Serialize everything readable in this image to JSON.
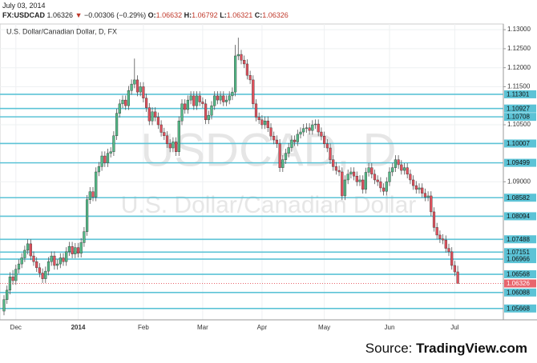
{
  "header": {
    "date": "July 03, 2014",
    "symbol": "FX:USDCAD",
    "last": "1.06326",
    "arrow": "▼",
    "change": "−0.00306 (−0.29%)",
    "o_label": "O:",
    "o": "1.06632",
    "h_label": "H:",
    "h": "1.06792",
    "l_label": "L:",
    "l": "1.06321",
    "c_label": "C:",
    "c": "1.06326"
  },
  "source": {
    "prefix": "Source:",
    "name": "TradingView.com"
  },
  "chart_data": {
    "type": "candlestick",
    "subtitle": "U.S. Dollar/Canadian Dollar, D, FX",
    "watermark": "USDCAD, D",
    "watermark_subtitle": "U.S. Dollar/Canadian Dollar",
    "up_color": "#53b987",
    "down_color": "#e0505c",
    "level_color": "#5cc3d6",
    "last_price_color": "#e8656d",
    "ylim": [
      1.0537,
      1.1315
    ],
    "yticks": [
      {
        "value": 1.09,
        "label": "1.09000"
      },
      {
        "value": 1.105,
        "label": "1.10500"
      },
      {
        "value": 1.115,
        "label": "1.11500"
      },
      {
        "value": 1.12,
        "label": "1.12000"
      },
      {
        "value": 1.125,
        "label": "1.12500"
      },
      {
        "value": 1.13,
        "label": "1.13000"
      }
    ],
    "levels": [
      1.11301,
      1.10927,
      1.10708,
      1.10007,
      1.09499,
      1.08582,
      1.08094,
      1.07488,
      1.07151,
      1.06966,
      1.06568,
      1.06088,
      1.05668
    ],
    "last_price": 1.06326,
    "grid": true,
    "categories": [
      null,
      null,
      null,
      null,
      "Dec",
      null,
      null,
      null,
      null,
      null,
      null,
      null,
      null,
      null,
      null,
      null,
      null,
      null,
      null,
      null,
      null,
      null,
      null,
      null,
      null,
      "2014",
      null,
      null,
      null,
      null,
      null,
      null,
      null,
      null,
      null,
      null,
      null,
      null,
      null,
      null,
      null,
      null,
      null,
      null,
      null,
      null,
      null,
      "Feb",
      null,
      null,
      null,
      null,
      null,
      null,
      null,
      null,
      null,
      null,
      null,
      null,
      null,
      null,
      null,
      null,
      null,
      null,
      null,
      "Mar",
      null,
      null,
      null,
      null,
      null,
      null,
      null,
      null,
      null,
      null,
      null,
      null,
      null,
      null,
      null,
      null,
      null,
      null,
      null,
      "Apr",
      null,
      null,
      null,
      null,
      null,
      null,
      null,
      null,
      null,
      null,
      null,
      null,
      null,
      null,
      null,
      null,
      null,
      null,
      null,
      null,
      "May",
      null,
      null,
      null,
      null,
      null,
      null,
      null,
      null,
      null,
      null,
      null,
      null,
      null,
      null,
      null,
      null,
      null,
      null,
      null,
      null,
      null,
      "Jun",
      null,
      null,
      null,
      null,
      null,
      null,
      null,
      null,
      null,
      null,
      null,
      null,
      null,
      null,
      null,
      null,
      null,
      null,
      null,
      null,
      null,
      "Jul",
      null
    ],
    "ohlc": [
      [
        1.056,
        1.0602,
        1.0549,
        1.059
      ],
      [
        1.059,
        1.0627,
        1.0579,
        1.0615
      ],
      [
        1.0615,
        1.0662,
        1.0604,
        1.065
      ],
      [
        1.065,
        1.0668,
        1.0629,
        1.064
      ],
      [
        1.064,
        1.0682,
        1.0629,
        1.067
      ],
      [
        1.067,
        1.0696,
        1.0659,
        1.0684
      ],
      [
        1.0684,
        1.0712,
        1.0673,
        1.07
      ],
      [
        1.07,
        1.0732,
        1.0689,
        1.072
      ],
      [
        1.072,
        1.0749,
        1.0709,
        1.0737
      ],
      [
        1.0737,
        1.0749,
        1.0694,
        1.0705
      ],
      [
        1.0705,
        1.0717,
        1.0679,
        1.069
      ],
      [
        1.069,
        1.0702,
        1.0663,
        1.0674
      ],
      [
        1.0674,
        1.0686,
        1.0649,
        1.066
      ],
      [
        1.066,
        1.0672,
        1.0634,
        1.0645
      ],
      [
        1.0645,
        1.0677,
        1.0634,
        1.0665
      ],
      [
        1.0665,
        1.0702,
        1.0654,
        1.069
      ],
      [
        1.069,
        1.0717,
        1.0679,
        1.0705
      ],
      [
        1.0705,
        1.0717,
        1.0669,
        1.068
      ],
      [
        1.068,
        1.0696,
        1.0669,
        1.0684
      ],
      [
        1.0684,
        1.0712,
        1.0673,
        1.07
      ],
      [
        1.07,
        1.0712,
        1.0679,
        1.069
      ],
      [
        1.069,
        1.0728,
        1.0679,
        1.0716
      ],
      [
        1.0716,
        1.0742,
        1.0705,
        1.073
      ],
      [
        1.073,
        1.0742,
        1.0699,
        1.071
      ],
      [
        1.071,
        1.0739,
        1.0699,
        1.0727
      ],
      [
        1.0727,
        1.0739,
        1.0701,
        1.0712
      ],
      [
        1.0712,
        1.0752,
        1.0701,
        1.074
      ],
      [
        1.074,
        1.0781,
        1.0729,
        1.0769
      ],
      [
        1.0769,
        1.0865,
        1.0758,
        1.0853
      ],
      [
        1.0853,
        1.0886,
        1.0842,
        1.0874
      ],
      [
        1.0874,
        1.0886,
        1.0849,
        1.086
      ],
      [
        1.086,
        1.0938,
        1.0849,
        1.0926
      ],
      [
        1.0926,
        1.0952,
        1.0915,
        1.094
      ],
      [
        1.094,
        1.098,
        1.0929,
        1.0968
      ],
      [
        1.0968,
        1.098,
        1.0939,
        1.095
      ],
      [
        1.095,
        1.0987,
        1.0939,
        1.0975
      ],
      [
        1.0975,
        1.0991,
        1.0964,
        1.0979
      ],
      [
        1.0979,
        1.1033,
        1.0968,
        1.1021
      ],
      [
        1.1021,
        1.1092,
        1.101,
        1.108
      ],
      [
        1.108,
        1.1117,
        1.1069,
        1.1105
      ],
      [
        1.1105,
        1.1127,
        1.1094,
        1.1115
      ],
      [
        1.1115,
        1.1127,
        1.1089,
        1.11
      ],
      [
        1.11,
        1.1152,
        1.1089,
        1.114
      ],
      [
        1.114,
        1.1169,
        1.1129,
        1.1157
      ],
      [
        1.1157,
        1.1224,
        1.1146,
        1.1168
      ],
      [
        1.1168,
        1.118,
        1.1125,
        1.1136
      ],
      [
        1.1136,
        1.1162,
        1.1125,
        1.115
      ],
      [
        1.115,
        1.1162,
        1.1109,
        1.112
      ],
      [
        1.112,
        1.1132,
        1.1084,
        1.1095
      ],
      [
        1.1095,
        1.1107,
        1.1049,
        1.106
      ],
      [
        1.106,
        1.1096,
        1.1049,
        1.1084
      ],
      [
        1.1084,
        1.1096,
        1.1059,
        1.107
      ],
      [
        1.107,
        1.1082,
        1.1039,
        1.105
      ],
      [
        1.105,
        1.1062,
        1.1019,
        1.103
      ],
      [
        1.103,
        1.1042,
        1.101,
        1.1021
      ],
      [
        1.1021,
        1.1033,
        1.0989,
        1.1
      ],
      [
        1.1,
        1.1012,
        1.0978,
        1.0989
      ],
      [
        1.0989,
        1.1017,
        1.0978,
        1.1005
      ],
      [
        1.1005,
        1.1017,
        1.0968,
        1.0979
      ],
      [
        1.0979,
        1.1072,
        1.0968,
        1.106
      ],
      [
        1.106,
        1.1117,
        1.1049,
        1.1105
      ],
      [
        1.1105,
        1.1117,
        1.1079,
        1.109
      ],
      [
        1.109,
        1.1127,
        1.1079,
        1.1115
      ],
      [
        1.1115,
        1.1138,
        1.1104,
        1.1126
      ],
      [
        1.1126,
        1.1138,
        1.1089,
        1.11
      ],
      [
        1.11,
        1.1138,
        1.1089,
        1.1126
      ],
      [
        1.1126,
        1.1138,
        1.1099,
        1.111
      ],
      [
        1.111,
        1.1122,
        1.1094,
        1.1105
      ],
      [
        1.1105,
        1.1117,
        1.1052,
        1.1063
      ],
      [
        1.1063,
        1.1087,
        1.1052,
        1.1075
      ],
      [
        1.1075,
        1.1112,
        1.1064,
        1.11
      ],
      [
        1.11,
        1.1138,
        1.1089,
        1.1126
      ],
      [
        1.1126,
        1.1138,
        1.1104,
        1.1115
      ],
      [
        1.1115,
        1.1138,
        1.1104,
        1.1126
      ],
      [
        1.1126,
        1.1138,
        1.1099,
        1.111
      ],
      [
        1.111,
        1.1127,
        1.1099,
        1.1115
      ],
      [
        1.1115,
        1.1138,
        1.1104,
        1.1126
      ],
      [
        1.1126,
        1.1148,
        1.1115,
        1.1136
      ],
      [
        1.1136,
        1.126,
        1.1125,
        1.1231
      ],
      [
        1.1231,
        1.1279,
        1.122,
        1.1235
      ],
      [
        1.1235,
        1.1247,
        1.1209,
        1.122
      ],
      [
        1.122,
        1.1232,
        1.1199,
        1.121
      ],
      [
        1.121,
        1.1222,
        1.1169,
        1.118
      ],
      [
        1.118,
        1.1192,
        1.1157,
        1.1168
      ],
      [
        1.1168,
        1.118,
        1.1094,
        1.1105
      ],
      [
        1.1105,
        1.1117,
        1.1059,
        1.107
      ],
      [
        1.107,
        1.1082,
        1.1052,
        1.1063
      ],
      [
        1.1063,
        1.1075,
        1.1039,
        1.105
      ],
      [
        1.105,
        1.1072,
        1.1039,
        1.106
      ],
      [
        1.106,
        1.1072,
        1.1031,
        1.1042
      ],
      [
        1.1042,
        1.1054,
        1.1009,
        1.102
      ],
      [
        1.102,
        1.1032,
        1.0999,
        1.101
      ],
      [
        1.101,
        1.1022,
        1.0989,
        1.1
      ],
      [
        1.1,
        1.1012,
        1.0926,
        1.0937
      ],
      [
        1.0937,
        1.097,
        1.0926,
        1.0958
      ],
      [
        1.0958,
        1.0987,
        1.0947,
        1.0975
      ],
      [
        1.0975,
        1.1002,
        1.0964,
        1.099
      ],
      [
        1.099,
        1.1022,
        1.0979,
        1.101
      ],
      [
        1.101,
        1.1022,
        1.0994,
        1.1005
      ],
      [
        1.1005,
        1.1037,
        1.0994,
        1.1025
      ],
      [
        1.1025,
        1.1043,
        1.1014,
        1.1031
      ],
      [
        1.1031,
        1.1052,
        1.102,
        1.104
      ],
      [
        1.104,
        1.1054,
        1.1029,
        1.1042
      ],
      [
        1.1042,
        1.1054,
        1.1024,
        1.1035
      ],
      [
        1.1035,
        1.1062,
        1.1024,
        1.105
      ],
      [
        1.105,
        1.1064,
        1.1039,
        1.1052
      ],
      [
        1.1052,
        1.1064,
        1.102,
        1.1031
      ],
      [
        1.1031,
        1.1043,
        1.1009,
        1.102
      ],
      [
        1.102,
        1.1032,
        1.0989,
        1.1
      ],
      [
        1.1,
        1.1012,
        1.0978,
        1.0989
      ],
      [
        1.0989,
        1.1001,
        1.0947,
        1.0958
      ],
      [
        1.0958,
        1.097,
        1.0929,
        1.094
      ],
      [
        1.094,
        1.0952,
        1.0919,
        1.093
      ],
      [
        1.093,
        1.0942,
        1.0915,
        1.0926
      ],
      [
        1.0926,
        1.0938,
        1.0852,
        1.0863
      ],
      [
        1.0863,
        1.0917,
        1.0852,
        1.0905
      ],
      [
        1.0905,
        1.0932,
        1.0894,
        1.092
      ],
      [
        1.092,
        1.0938,
        1.0909,
        1.0926
      ],
      [
        1.0926,
        1.0938,
        1.0904,
        1.0915
      ],
      [
        1.0915,
        1.0927,
        1.0889,
        1.09
      ],
      [
        1.09,
        1.0917,
        1.0889,
        1.0905
      ],
      [
        1.0905,
        1.0917,
        1.0869,
        1.088
      ],
      [
        1.088,
        1.0937,
        1.0869,
        1.0925
      ],
      [
        1.0925,
        1.0949,
        1.0914,
        1.0937
      ],
      [
        1.0937,
        1.0949,
        1.0909,
        1.092
      ],
      [
        1.092,
        1.0932,
        1.0894,
        1.0905
      ],
      [
        1.0905,
        1.0917,
        1.0889,
        1.09
      ],
      [
        1.09,
        1.0912,
        1.0873,
        1.0884
      ],
      [
        1.0884,
        1.0896,
        1.0864,
        1.0875
      ],
      [
        1.0875,
        1.0912,
        1.0864,
        1.09
      ],
      [
        1.09,
        1.0938,
        1.0889,
        1.0926
      ],
      [
        1.0926,
        1.0949,
        1.0915,
        1.0937
      ],
      [
        1.0937,
        1.097,
        1.0926,
        1.0958
      ],
      [
        1.0958,
        1.097,
        1.0934,
        1.0945
      ],
      [
        1.0945,
        1.0957,
        1.0919,
        1.093
      ],
      [
        1.093,
        1.0949,
        1.0919,
        1.0937
      ],
      [
        1.0937,
        1.0949,
        1.0909,
        1.092
      ],
      [
        1.092,
        1.0932,
        1.0894,
        1.0905
      ],
      [
        1.0905,
        1.0917,
        1.0879,
        1.089
      ],
      [
        1.089,
        1.0902,
        1.0869,
        1.088
      ],
      [
        1.088,
        1.0896,
        1.0869,
        1.0884
      ],
      [
        1.0884,
        1.0896,
        1.0859,
        1.087
      ],
      [
        1.087,
        1.0882,
        1.0849,
        1.086
      ],
      [
        1.086,
        1.0875,
        1.0849,
        1.0863
      ],
      [
        1.0863,
        1.0875,
        1.081,
        1.0821
      ],
      [
        1.0821,
        1.0833,
        1.0769,
        1.078
      ],
      [
        1.078,
        1.0792,
        1.0749,
        1.076
      ],
      [
        1.076,
        1.0772,
        1.0739,
        1.075
      ],
      [
        1.075,
        1.0762,
        1.0736,
        1.0747
      ],
      [
        1.0747,
        1.0759,
        1.0714,
        1.0725
      ],
      [
        1.0725,
        1.0737,
        1.0705,
        1.0716
      ],
      [
        1.0716,
        1.0728,
        1.0669,
        1.068
      ],
      [
        1.068,
        1.0692,
        1.0652,
        1.0663
      ],
      [
        1.06632,
        1.06792,
        1.06321,
        1.06326
      ]
    ]
  }
}
